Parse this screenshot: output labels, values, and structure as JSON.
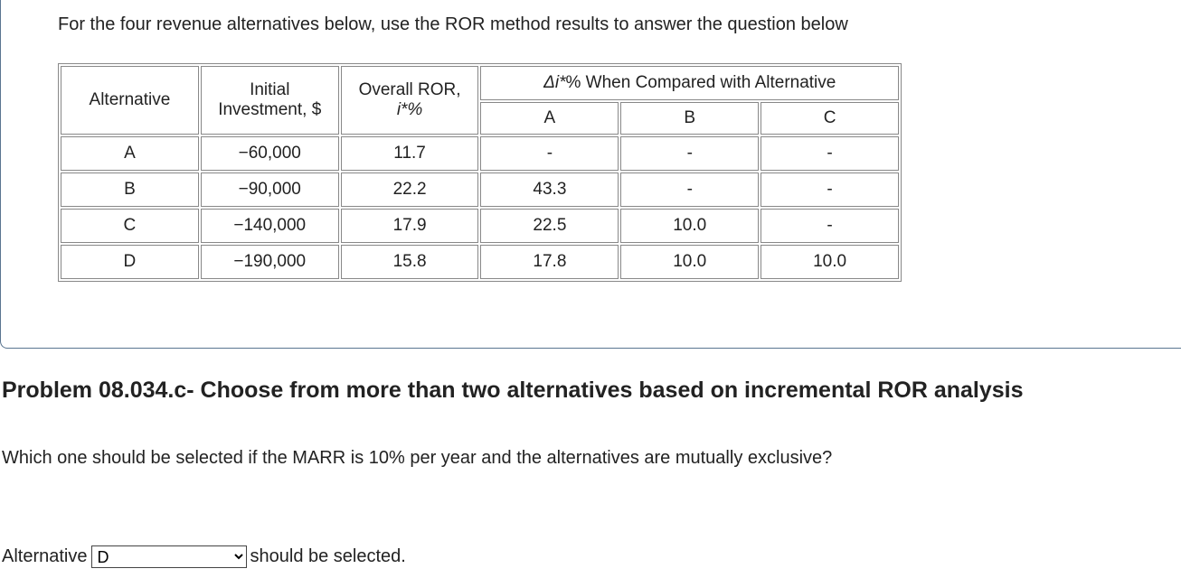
{
  "intro": "For the four revenue alternatives below, use the ROR method results to answer the question below",
  "table": {
    "header": {
      "alternative": "Alternative",
      "investment": "Initial Investment, $",
      "ror_label": "Overall ROR,",
      "ror_symbol": "i*%",
      "delta_symbol": "Δi*",
      "delta_text": "% When Compared with Alternative",
      "compare": [
        "A",
        "B",
        "C"
      ]
    },
    "rows": [
      [
        "A",
        "−60,000",
        "11.7",
        "-",
        "-",
        "-"
      ],
      [
        "B",
        "−90,000",
        "22.2",
        "43.3",
        "-",
        "-"
      ],
      [
        "C",
        "−140,000",
        "17.9",
        "22.5",
        "10.0",
        "-"
      ],
      [
        "D",
        "−190,000",
        "15.8",
        "17.8",
        "10.0",
        "10.0"
      ]
    ]
  },
  "problem": {
    "title": "Problem 08.034.c- Choose from more than two alternatives based on incremental ROR analysis",
    "question": "Which one should be selected if the MARR is 10% per year and the alternatives are mutually exclusive?",
    "answer_prefix": "Alternative",
    "answer": "D",
    "answer_suffix": "should be selected."
  }
}
